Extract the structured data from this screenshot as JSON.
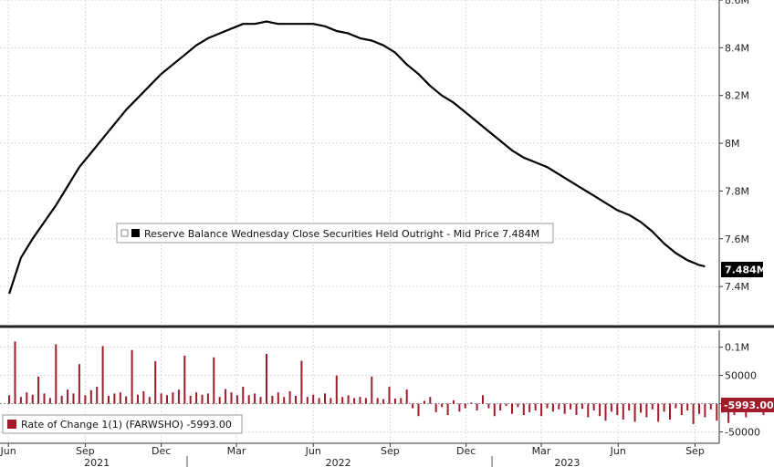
{
  "chart_data": [
    {
      "type": "line",
      "legend": {
        "label": "Reserve Balance Wednesday Close Securities Held Outright - Mid Price 7.484M",
        "placement": "center-left"
      },
      "last_value_label": "7.484M",
      "ylim": [
        7.24,
        8.6
      ],
      "y_ticks": [
        "8.6M",
        "8.4M",
        "8.2M",
        "8M",
        "7.8M",
        "7.6M",
        "7.4M"
      ],
      "y_tick_values": [
        8.6,
        8.4,
        8.2,
        8.0,
        7.8,
        7.6,
        7.4
      ],
      "grid": true,
      "x": [
        "2021-06-02",
        "2021-06-16",
        "2021-06-30",
        "2021-07-14",
        "2021-07-28",
        "2021-08-11",
        "2021-08-25",
        "2021-09-08",
        "2021-09-22",
        "2021-10-06",
        "2021-10-20",
        "2021-11-03",
        "2021-11-17",
        "2021-12-01",
        "2021-12-15",
        "2021-12-29",
        "2022-01-12",
        "2022-01-26",
        "2022-02-09",
        "2022-02-23",
        "2022-03-09",
        "2022-03-23",
        "2022-04-06",
        "2022-04-20",
        "2022-05-04",
        "2022-05-18",
        "2022-06-01",
        "2022-06-15",
        "2022-06-29",
        "2022-07-13",
        "2022-07-27",
        "2022-08-10",
        "2022-08-24",
        "2022-09-07",
        "2022-09-21",
        "2022-10-05",
        "2022-10-19",
        "2022-11-02",
        "2022-11-16",
        "2022-11-30",
        "2022-12-14",
        "2022-12-28",
        "2023-01-11",
        "2023-01-25",
        "2023-02-08",
        "2023-02-22",
        "2023-03-08",
        "2023-03-22",
        "2023-04-05",
        "2023-04-19",
        "2023-05-03",
        "2023-05-17",
        "2023-05-31",
        "2023-06-14",
        "2023-06-28",
        "2023-07-12",
        "2023-07-26",
        "2023-08-09",
        "2023-08-23",
        "2023-09-06",
        "2023-09-13"
      ],
      "values": [
        7.37,
        7.52,
        7.6,
        7.67,
        7.74,
        7.82,
        7.9,
        7.96,
        8.02,
        8.08,
        8.14,
        8.19,
        8.24,
        8.29,
        8.33,
        8.37,
        8.41,
        8.44,
        8.46,
        8.48,
        8.5,
        8.5,
        8.51,
        8.5,
        8.5,
        8.5,
        8.5,
        8.49,
        8.47,
        8.46,
        8.44,
        8.43,
        8.41,
        8.38,
        8.33,
        8.29,
        8.24,
        8.2,
        8.17,
        8.13,
        8.09,
        8.05,
        8.01,
        7.97,
        7.94,
        7.92,
        7.9,
        7.87,
        7.84,
        7.81,
        7.78,
        7.75,
        7.72,
        7.7,
        7.67,
        7.63,
        7.58,
        7.54,
        7.51,
        7.49,
        7.484
      ],
      "color": "#000000"
    },
    {
      "type": "bar",
      "legend": {
        "label": "Rate of Change 1(1) (FARWSHO) -5993.00",
        "placement": "bottom-left"
      },
      "last_value_label": "-5993.00",
      "ylim": [
        -70000,
        130000
      ],
      "y_ticks": [
        "0.1M",
        "50000",
        "0",
        "-50000"
      ],
      "y_tick_values": [
        100000,
        50000,
        0,
        -50000
      ],
      "grid": true,
      "x_start": "2021-06-02",
      "x_end": "2023-09-13",
      "week_step_days": 7,
      "values": [
        15000,
        110000,
        12000,
        20000,
        16000,
        48000,
        18000,
        10000,
        105000,
        14000,
        25000,
        18000,
        70000,
        15000,
        24000,
        30000,
        102000,
        14000,
        18000,
        20000,
        13000,
        95000,
        16000,
        22000,
        12000,
        75000,
        18000,
        15000,
        20000,
        25000,
        85000,
        14000,
        20000,
        16000,
        18000,
        82000,
        12000,
        26000,
        20000,
        15000,
        30000,
        15000,
        18000,
        12000,
        88000,
        14000,
        20000,
        12000,
        22000,
        14000,
        76000,
        12000,
        16000,
        10000,
        18000,
        10000,
        50000,
        12000,
        15000,
        10000,
        12000,
        10000,
        48000,
        10000,
        8000,
        30000,
        9000,
        10000,
        25000,
        -8000,
        -22000,
        5000,
        12000,
        -15000,
        -6000,
        -20000,
        6000,
        -14000,
        -8000,
        2000,
        -12000,
        15000,
        -8000,
        -22000,
        -12000,
        -4000,
        -18000,
        -6000,
        -20000,
        -15000,
        -12000,
        -22000,
        -8000,
        -14000,
        -10000,
        -18000,
        -10000,
        -20000,
        -9000,
        -24000,
        -12000,
        -22000,
        -30000,
        -14000,
        -20000,
        -28000,
        -12000,
        -32000,
        -16000,
        -24000,
        -10000,
        -32000,
        -14000,
        -28000,
        -8000,
        -20000,
        -12000,
        -36000,
        -18000,
        -24000,
        -10000,
        -30000,
        -16000,
        -34000,
        -20000,
        -12000,
        -24000,
        -8000,
        -10000,
        -20000,
        -12000,
        -18000,
        -42000,
        -10000,
        -20000,
        -16000,
        -30000,
        -14000,
        -10000,
        -40000,
        -18000,
        -24000,
        -20000,
        -12000,
        -26000,
        -14000,
        -32000,
        -12000,
        -22000,
        -18000,
        -30000,
        -10000,
        -24000,
        -38000,
        -16000,
        -22000,
        -12000,
        -30000,
        -10000,
        -22000,
        -5993
      ],
      "color": "#a01c2a"
    }
  ],
  "x_axis": {
    "month_labels": [
      {
        "label": "Jun",
        "date": "2021-06-01"
      },
      {
        "label": "Sep",
        "date": "2021-09-01"
      },
      {
        "label": "Dec",
        "date": "2021-12-01"
      },
      {
        "label": "Mar",
        "date": "2022-03-01"
      },
      {
        "label": "Jun",
        "date": "2022-06-01"
      },
      {
        "label": "Sep",
        "date": "2022-09-01"
      },
      {
        "label": "Dec",
        "date": "2022-12-01"
      },
      {
        "label": "Mar",
        "date": "2023-03-01"
      },
      {
        "label": "Jun",
        "date": "2023-06-01"
      },
      {
        "label": "Sep",
        "date": "2023-09-01"
      }
    ],
    "year_labels": [
      {
        "label": "2021",
        "date": "2021-09-15"
      },
      {
        "label": "2022",
        "date": "2022-07-01"
      },
      {
        "label": "2023",
        "date": "2023-04-01"
      }
    ],
    "start": "2021-05-22",
    "end": "2023-09-30"
  }
}
